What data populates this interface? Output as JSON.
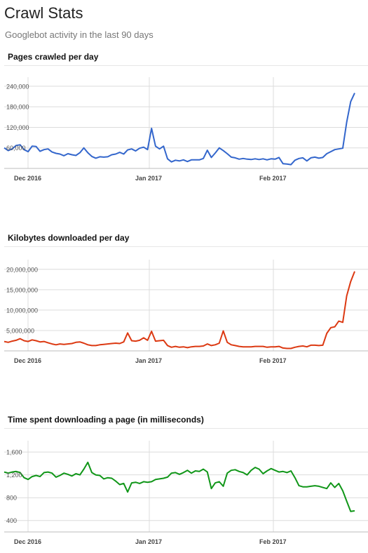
{
  "header": {
    "title": "Crawl Stats",
    "subtitle": "Googlebot activity in the last 90 days"
  },
  "chart_data": [
    {
      "type": "line",
      "title": "Pages crawled per day",
      "color": "#3366cc",
      "y_ticks": [
        60000,
        120000,
        180000,
        240000
      ],
      "y_tick_labels": [
        "60,000",
        "120,000",
        "180,000",
        "240,000"
      ],
      "ylim": [
        0,
        250000
      ],
      "x_tick_labels": [
        "Dec 2016",
        "Jan 2017",
        "Feb 2017"
      ],
      "grid": true,
      "legend": "none",
      "series": [
        {
          "values": [
            60000,
            52000,
            57000,
            67000,
            69000,
            55000,
            49000,
            65000,
            64000,
            50000,
            55000,
            57000,
            48000,
            44000,
            42000,
            37000,
            43000,
            40000,
            38000,
            46000,
            60000,
            46000,
            35000,
            30000,
            34000,
            33000,
            34000,
            40000,
            42000,
            47000,
            42000,
            54000,
            57000,
            51000,
            59000,
            62000,
            55000,
            117000,
            65000,
            57000,
            65000,
            28000,
            19000,
            24000,
            22000,
            25000,
            20000,
            25000,
            25000,
            25000,
            29000,
            53000,
            32000,
            45000,
            60000,
            52000,
            43000,
            33000,
            31000,
            27000,
            29000,
            27000,
            26000,
            28000,
            26000,
            28000,
            25000,
            28000,
            27000,
            32000,
            14000,
            13000,
            11000,
            24000,
            29000,
            31000,
            22000,
            31000,
            33000,
            30000,
            32000,
            43000,
            49000,
            55000,
            57000,
            59000,
            135000,
            195000,
            220000
          ]
        }
      ]
    },
    {
      "type": "line",
      "title": "Kilobytes downloaded per day",
      "color": "#dc3912",
      "y_ticks": [
        5000000,
        10000000,
        15000000,
        20000000
      ],
      "y_tick_labels": [
        "5,000,000",
        "10,000,000",
        "15,000,000",
        "20,000,000"
      ],
      "ylim": [
        0,
        21000000
      ],
      "x_tick_labels": [
        "Dec 2016",
        "Jan 2017",
        "Feb 2017"
      ],
      "grid": true,
      "legend": "none",
      "series": [
        {
          "values": [
            2300000,
            2100000,
            2400000,
            2600000,
            3000000,
            2500000,
            2300000,
            2700000,
            2500000,
            2200000,
            2300000,
            2000000,
            1700000,
            1500000,
            1700000,
            1600000,
            1700000,
            1800000,
            2100000,
            2200000,
            1900000,
            1500000,
            1300000,
            1300000,
            1500000,
            1600000,
            1700000,
            1800000,
            1900000,
            1800000,
            2200000,
            4400000,
            2500000,
            2400000,
            2600000,
            3200000,
            2600000,
            4800000,
            2400000,
            2500000,
            2600000,
            1300000,
            900000,
            1100000,
            900000,
            1000000,
            800000,
            1000000,
            1100000,
            1100000,
            1200000,
            1700000,
            1300000,
            1500000,
            1900000,
            4900000,
            2100000,
            1500000,
            1300000,
            1100000,
            1000000,
            1000000,
            1000000,
            1100000,
            1100000,
            1100000,
            900000,
            1000000,
            1000000,
            1100000,
            700000,
            600000,
            600000,
            900000,
            1100000,
            1200000,
            1000000,
            1400000,
            1400000,
            1300000,
            1400000,
            4300000,
            5700000,
            5900000,
            7300000,
            7000000,
            13500000,
            17000000,
            19500000
          ]
        }
      ]
    },
    {
      "type": "line",
      "title": "Time spent downloading a page (in milliseconds)",
      "color": "#109618",
      "y_ticks": [
        400,
        800,
        1200,
        1600
      ],
      "y_tick_labels": [
        "400",
        "800",
        "1,200",
        "1,600"
      ],
      "ylim": [
        200,
        1700
      ],
      "x_tick_labels": [
        "Dec 2016",
        "Jan 2017",
        "Feb 2017"
      ],
      "grid": true,
      "legend": "none",
      "series": [
        {
          "values": [
            1250,
            1230,
            1250,
            1260,
            1240,
            1150,
            1120,
            1170,
            1190,
            1170,
            1240,
            1250,
            1230,
            1160,
            1190,
            1230,
            1210,
            1180,
            1220,
            1200,
            1300,
            1420,
            1240,
            1200,
            1190,
            1130,
            1150,
            1140,
            1090,
            1030,
            1050,
            900,
            1060,
            1070,
            1050,
            1080,
            1070,
            1080,
            1120,
            1130,
            1140,
            1160,
            1230,
            1240,
            1210,
            1240,
            1280,
            1230,
            1270,
            1260,
            1300,
            1250,
            960,
            1060,
            1080,
            1000,
            1230,
            1280,
            1290,
            1260,
            1240,
            1200,
            1280,
            1330,
            1300,
            1220,
            1270,
            1310,
            1280,
            1250,
            1260,
            1240,
            1270,
            1150,
            1010,
            990,
            990,
            1000,
            1010,
            1000,
            980,
            960,
            1060,
            980,
            1050,
            920,
            740,
            560,
            570
          ]
        }
      ]
    }
  ]
}
